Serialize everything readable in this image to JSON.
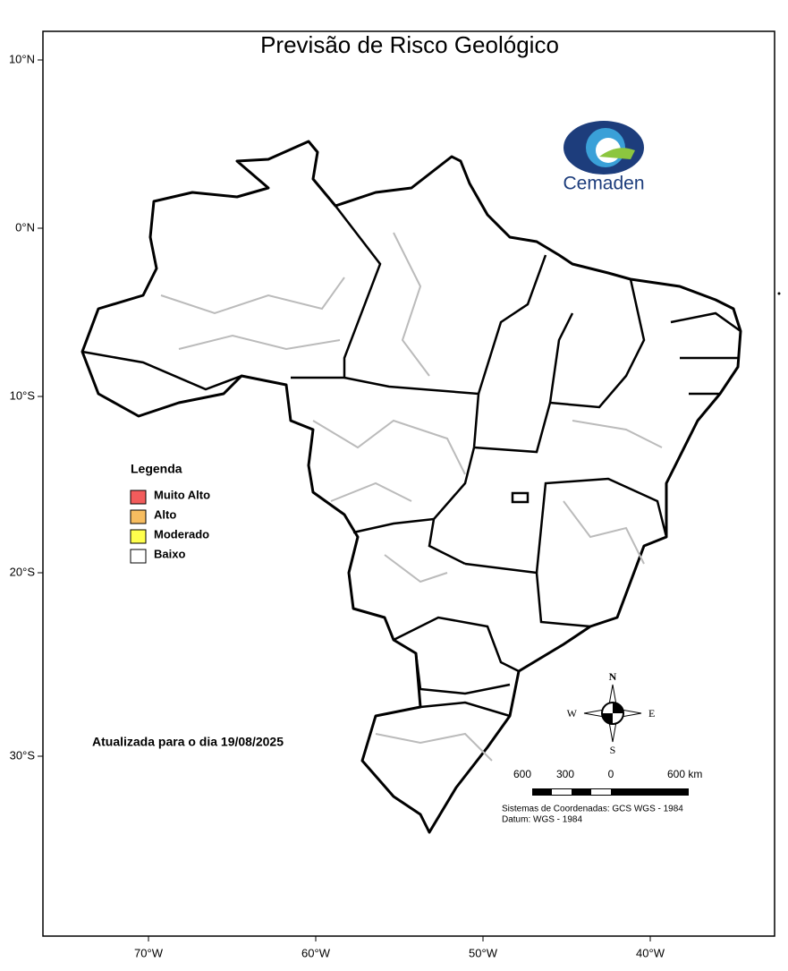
{
  "map": {
    "title": "Previsão de Risco Geológico",
    "lat_ticks": [
      "10°N",
      "0°N",
      "10°S",
      "20°S",
      "30°S"
    ],
    "lon_ticks": [
      "70°W",
      "60°W",
      "50°W",
      "40°W"
    ],
    "logo": "Cemaden",
    "legend": {
      "title": "Legenda",
      "items": [
        {
          "label": "Muito Alto",
          "color": "#f25c5c"
        },
        {
          "label": "Alto",
          "color": "#f7bd60"
        },
        {
          "label": "Moderado",
          "color": "#ffff4d"
        },
        {
          "label": "Baixo",
          "color": "#ffffff"
        }
      ]
    },
    "updated": "Atualizada para o dia 19/08/2025",
    "compass": {
      "n": "N",
      "s": "S",
      "e": "E",
      "w": "W"
    },
    "scale_labels": [
      "600",
      "300",
      "0",
      "600 km"
    ],
    "coord_system": "Sistemas de Coordenadas: GCS WGS - 1984",
    "datum": "Datum: WGS - 1984"
  }
}
